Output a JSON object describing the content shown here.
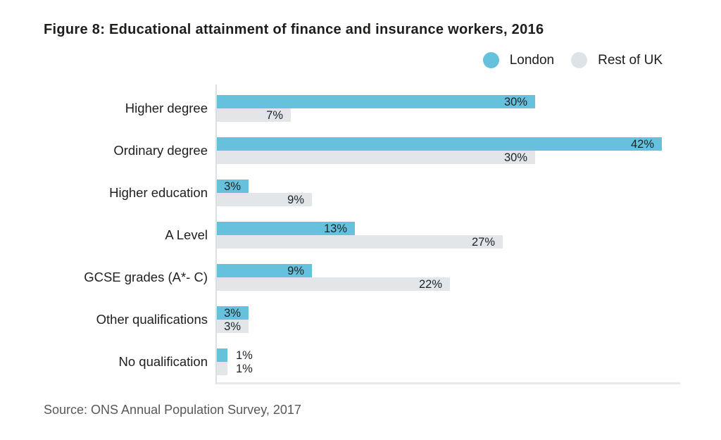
{
  "figure": {
    "title": "Figure 8: Educational attainment of finance and insurance workers, 2016",
    "source": "Source: ONS Annual Population Survey, 2017"
  },
  "legend": {
    "items": [
      {
        "label": "London",
        "color": "#66C1DC"
      },
      {
        "label": "Rest of UK",
        "color": "#DDE3E7"
      }
    ]
  },
  "colors": {
    "london_bar": "#66C1DC",
    "rest_of_uk_bar": "#E2E6E9",
    "axis_line": "#DCDFE2",
    "baseline": "#E6E8EA",
    "title_text": "#1D1D1B",
    "category_text": "#1F1F1D",
    "value_text": "#1C2228",
    "source_text": "#58585A",
    "background": "#FFFFFF"
  },
  "chart_data": {
    "type": "bar",
    "orientation": "horizontal",
    "title": "Figure 8: Educational attainment of finance and insurance workers, 2016",
    "categories": [
      "Higher degree",
      "Ordinary degree",
      "Higher education",
      "A Level",
      "GCSE grades (A*- C)",
      "Other qualifications",
      "No qualification"
    ],
    "series": [
      {
        "name": "London",
        "color": "#66C1DC",
        "values": [
          30,
          42,
          3,
          13,
          9,
          3,
          1
        ]
      },
      {
        "name": "Rest of UK",
        "color": "#E2E6E9",
        "values": [
          7,
          30,
          9,
          27,
          22,
          3,
          1
        ]
      }
    ],
    "value_suffix": "%",
    "xlim": [
      0,
      44
    ],
    "grid": false,
    "legend_position": "top-right",
    "value_label_style": "inside bar end; outside right for bars under 2%",
    "source": "Source: ONS Annual Population Survey, 2017"
  }
}
